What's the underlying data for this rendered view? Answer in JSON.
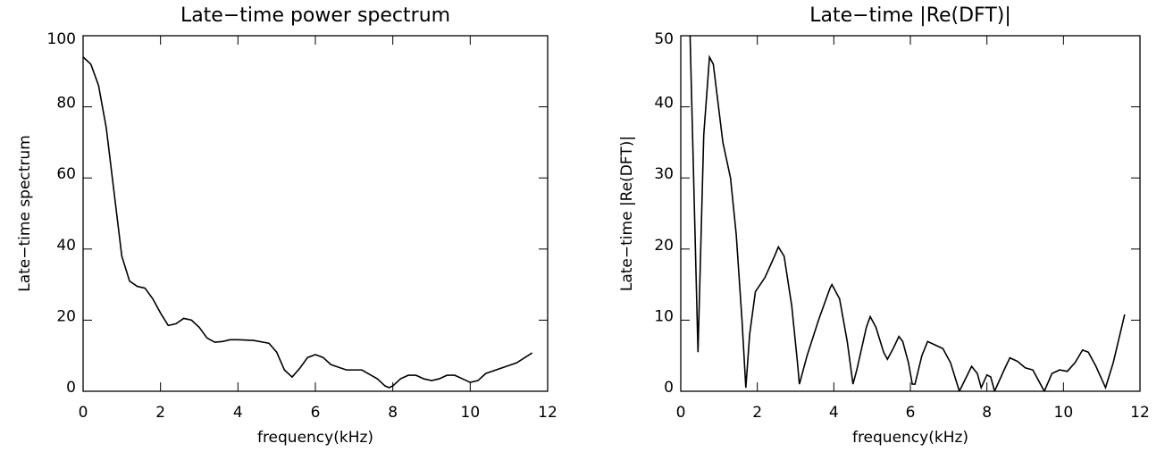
{
  "chart_data": [
    {
      "type": "line",
      "title": "Late−time power spectrum",
      "x_label": "frequency(kHz)",
      "y_label": "Late−time spectrum",
      "xlim": [
        0,
        12
      ],
      "xticks": [
        0,
        2,
        4,
        6,
        8,
        10,
        12
      ],
      "ylim": [
        0,
        100
      ],
      "yticks": [
        0,
        20,
        40,
        60,
        80,
        100
      ],
      "series": [
        {
          "color": "#000000",
          "x": [
            0,
            0.2,
            0.4,
            0.6,
            0.8,
            1.0,
            1.2,
            1.4,
            1.6,
            1.8,
            2.0,
            2.2,
            2.4,
            2.6,
            2.8,
            3.0,
            3.2,
            3.4,
            3.6,
            3.8,
            4.0,
            4.4,
            4.8,
            5.0,
            5.2,
            5.4,
            5.6,
            5.8,
            6.0,
            6.2,
            6.4,
            6.8,
            7.2,
            7.6,
            7.8,
            7.9,
            8.0,
            8.2,
            8.4,
            8.6,
            8.8,
            9.0,
            9.2,
            9.4,
            9.6,
            9.8,
            10.0,
            10.2,
            10.4,
            10.8,
            11.2,
            11.6
          ],
          "values": [
            94,
            92,
            86,
            74,
            56,
            38,
            31,
            29.5,
            29,
            26,
            22,
            18.5,
            19,
            20.5,
            20,
            18,
            15,
            13.8,
            14,
            14.5,
            14.5,
            14.3,
            13.5,
            11,
            6,
            4,
            6.5,
            9.5,
            10.3,
            9.5,
            7.5,
            6,
            6,
            3.5,
            1.5,
            1,
            1.5,
            3.5,
            4.5,
            4.5,
            3.5,
            3,
            3.5,
            4.5,
            4.5,
            3.5,
            2.5,
            3,
            5,
            6.5,
            8,
            10.8
          ]
        }
      ]
    },
    {
      "type": "line",
      "title": "Late−time |Re(DFT)|",
      "x_label": "frequency(kHz)",
      "y_label": "Late−time |Re(DFT)|",
      "xlim": [
        0,
        12
      ],
      "xticks": [
        0,
        2,
        4,
        6,
        8,
        10,
        12
      ],
      "ylim": [
        0,
        50
      ],
      "yticks": [
        0,
        10,
        20,
        30,
        40,
        50
      ],
      "series": [
        {
          "color": "#000000",
          "x": [
            0.22,
            0.45,
            0.6,
            0.75,
            0.85,
            1.1,
            1.3,
            1.45,
            1.6,
            1.7,
            1.8,
            1.95,
            2.2,
            2.45,
            2.55,
            2.7,
            2.9,
            3.05,
            3.1,
            3.3,
            3.6,
            3.9,
            3.95,
            4.15,
            4.35,
            4.5,
            4.6,
            4.85,
            4.95,
            5.1,
            5.3,
            5.4,
            5.55,
            5.7,
            5.8,
            5.95,
            6.05,
            6.12,
            6.3,
            6.45,
            6.65,
            6.85,
            7.05,
            7.28,
            7.6,
            7.75,
            7.85,
            8.0,
            8.1,
            8.2,
            8.45,
            8.6,
            8.8,
            9.0,
            9.2,
            9.35,
            9.5,
            9.7,
            9.9,
            10.1,
            10.3,
            10.5,
            10.65,
            10.85,
            11.1,
            11.3,
            11.6
          ],
          "values": [
            55,
            5.5,
            36,
            47,
            46,
            35,
            30,
            22,
            10,
            0.5,
            8,
            14,
            16,
            19,
            20.3,
            19,
            12,
            4,
            1,
            5,
            10,
            14.5,
            15,
            13,
            7,
            1,
            3,
            9,
            10.5,
            9,
            5.5,
            4.5,
            6,
            7.7,
            7,
            4,
            1,
            1,
            5,
            7,
            6.5,
            6,
            4,
            0,
            3.5,
            2.5,
            0.5,
            2.3,
            2,
            0,
            3,
            4.7,
            4.2,
            3.3,
            3,
            1.5,
            0,
            2.5,
            3,
            2.8,
            4,
            5.8,
            5.5,
            3.5,
            0.5,
            4,
            10.8
          ]
        }
      ]
    }
  ]
}
